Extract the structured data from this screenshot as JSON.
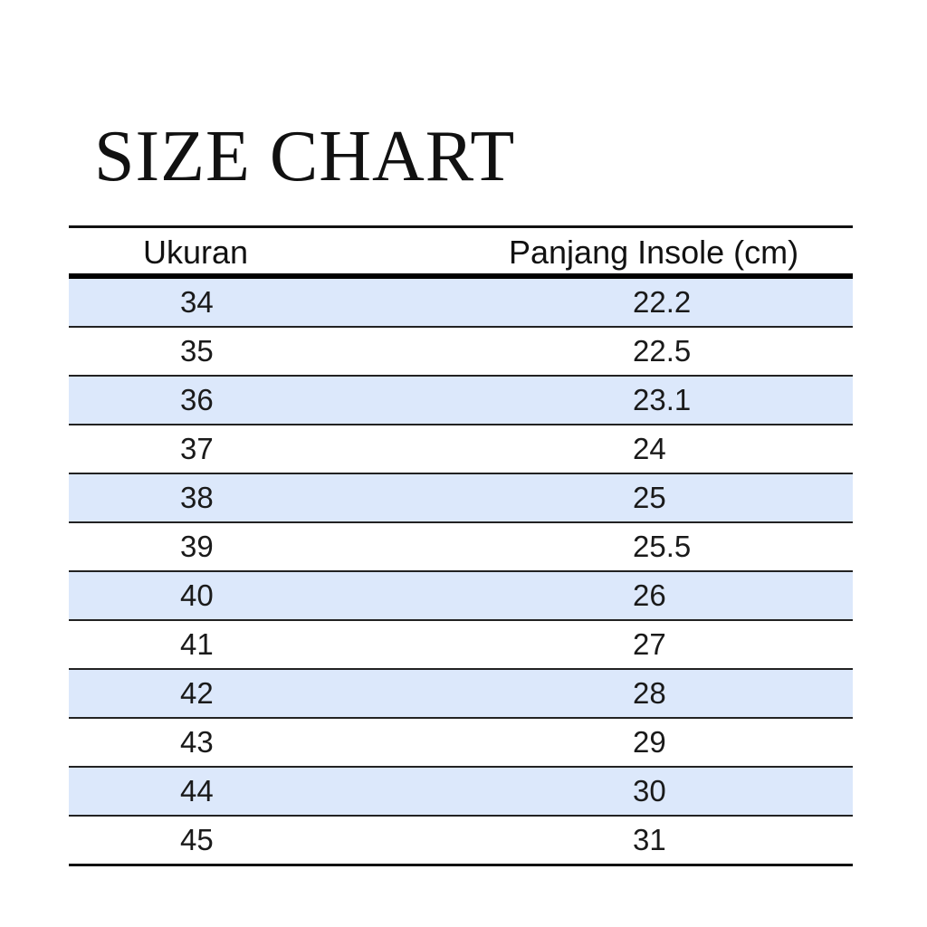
{
  "title": "SIZE CHART",
  "table": {
    "headers": [
      "Ukuran",
      "Panjang Insole (cm)"
    ],
    "row_highlight_color": "#dce8fb",
    "rows": [
      [
        "34",
        "22.2"
      ],
      [
        "35",
        "22.5"
      ],
      [
        "36",
        "23.1"
      ],
      [
        "37",
        "24"
      ],
      [
        "38",
        "25"
      ],
      [
        "39",
        "25.5"
      ],
      [
        "40",
        "26"
      ],
      [
        "41",
        "27"
      ],
      [
        "42",
        "28"
      ],
      [
        "43",
        "29"
      ],
      [
        "44",
        "30"
      ],
      [
        "45",
        "31"
      ]
    ]
  }
}
